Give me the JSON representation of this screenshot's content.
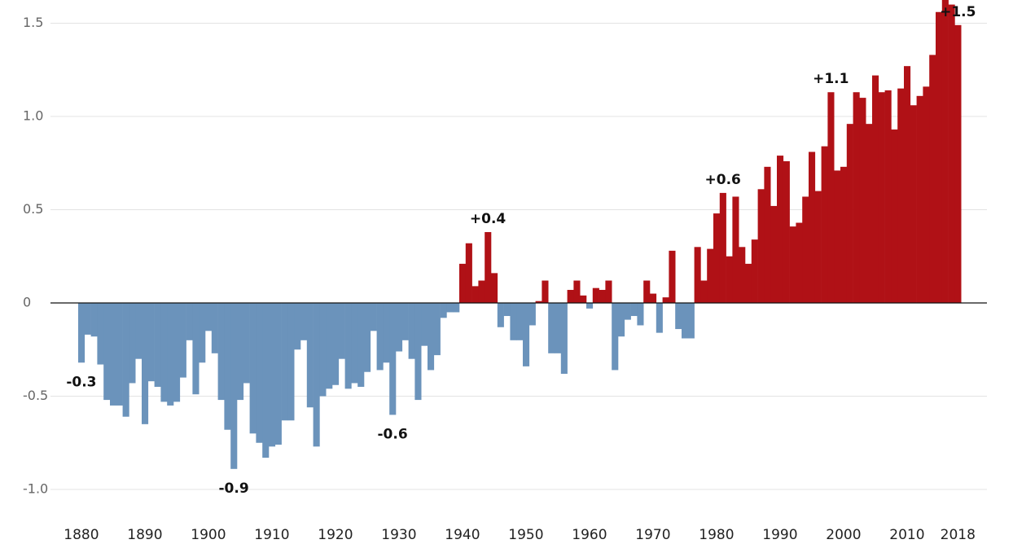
{
  "chart_data": {
    "type": "bar",
    "x": [
      1880,
      1881,
      1882,
      1883,
      1884,
      1885,
      1886,
      1887,
      1888,
      1889,
      1890,
      1891,
      1892,
      1893,
      1894,
      1895,
      1896,
      1897,
      1898,
      1899,
      1900,
      1901,
      1902,
      1903,
      1904,
      1905,
      1906,
      1907,
      1908,
      1909,
      1910,
      1911,
      1912,
      1913,
      1914,
      1915,
      1916,
      1917,
      1918,
      1919,
      1920,
      1921,
      1922,
      1923,
      1924,
      1925,
      1926,
      1927,
      1928,
      1929,
      1930,
      1931,
      1932,
      1933,
      1934,
      1935,
      1936,
      1937,
      1938,
      1939,
      1940,
      1941,
      1942,
      1943,
      1944,
      1945,
      1946,
      1947,
      1948,
      1949,
      1950,
      1951,
      1952,
      1953,
      1954,
      1955,
      1956,
      1957,
      1958,
      1959,
      1960,
      1961,
      1962,
      1963,
      1964,
      1965,
      1966,
      1967,
      1968,
      1969,
      1970,
      1971,
      1972,
      1973,
      1974,
      1975,
      1976,
      1977,
      1978,
      1979,
      1980,
      1981,
      1982,
      1983,
      1984,
      1985,
      1986,
      1987,
      1988,
      1989,
      1990,
      1991,
      1992,
      1993,
      1994,
      1995,
      1996,
      1997,
      1998,
      1999,
      2000,
      2001,
      2002,
      2003,
      2004,
      2005,
      2006,
      2007,
      2008,
      2009,
      2010,
      2011,
      2012,
      2013,
      2014,
      2015,
      2016,
      2017,
      2018
    ],
    "values": [
      -0.32,
      -0.17,
      -0.18,
      -0.33,
      -0.52,
      -0.55,
      -0.55,
      -0.61,
      -0.43,
      -0.3,
      -0.65,
      -0.42,
      -0.45,
      -0.53,
      -0.55,
      -0.53,
      -0.4,
      -0.2,
      -0.49,
      -0.32,
      -0.15,
      -0.27,
      -0.52,
      -0.68,
      -0.89,
      -0.52,
      -0.43,
      -0.7,
      -0.75,
      -0.83,
      -0.77,
      -0.76,
      -0.63,
      -0.63,
      -0.25,
      -0.2,
      -0.56,
      -0.77,
      -0.5,
      -0.46,
      -0.44,
      -0.3,
      -0.46,
      -0.43,
      -0.45,
      -0.37,
      -0.15,
      -0.36,
      -0.32,
      -0.6,
      -0.26,
      -0.2,
      -0.3,
      -0.52,
      -0.23,
      -0.36,
      -0.28,
      -0.08,
      -0.05,
      -0.05,
      0.21,
      0.32,
      0.09,
      0.12,
      0.38,
      0.16,
      -0.13,
      -0.07,
      -0.2,
      -0.2,
      -0.34,
      -0.12,
      0.01,
      0.12,
      -0.27,
      -0.27,
      -0.38,
      0.07,
      0.12,
      0.04,
      -0.03,
      0.08,
      0.07,
      0.12,
      -0.36,
      -0.18,
      -0.09,
      -0.07,
      -0.12,
      0.12,
      0.05,
      -0.16,
      0.03,
      0.28,
      -0.14,
      -0.19,
      -0.19,
      0.3,
      0.12,
      0.29,
      0.48,
      0.59,
      0.25,
      0.57,
      0.3,
      0.21,
      0.34,
      0.61,
      0.73,
      0.52,
      0.79,
      0.76,
      0.41,
      0.43,
      0.57,
      0.81,
      0.6,
      0.84,
      1.13,
      0.71,
      0.73,
      0.96,
      1.13,
      1.1,
      0.96,
      1.22,
      1.13,
      1.14,
      0.93,
      1.15,
      1.27,
      1.06,
      1.11,
      1.16,
      1.33,
      1.56,
      1.68,
      1.6,
      1.49
    ],
    "positive_color": "#b01116",
    "negative_color": "#6b93bb",
    "xticks": [
      1880,
      1890,
      1900,
      1910,
      1920,
      1930,
      1940,
      1950,
      1960,
      1970,
      1980,
      1990,
      2000,
      2010,
      2018
    ],
    "ylim": [
      -1.2,
      1.7
    ],
    "yticks": [
      {
        "value": -1,
        "label": "-1.0"
      },
      {
        "value": -0.5,
        "label": "-0.5"
      },
      0,
      {
        "value": 0.5,
        "label": "0.5"
      },
      {
        "value": 1,
        "label": "1.0"
      },
      {
        "value": 1.5,
        "label": "1.5"
      }
    ],
    "grid": true,
    "annotations": [
      {
        "text": "-0.3",
        "x": 1880
      },
      {
        "text": "-0.9",
        "x": 1904
      },
      {
        "text": "-0.6",
        "x": 1929
      },
      {
        "text": "+0.4",
        "x": 1944
      },
      {
        "text": "+0.6",
        "x": 1981
      },
      {
        "text": "+1.1",
        "x": 1998
      },
      {
        "text": "+1.5",
        "x": 2018
      }
    ]
  }
}
